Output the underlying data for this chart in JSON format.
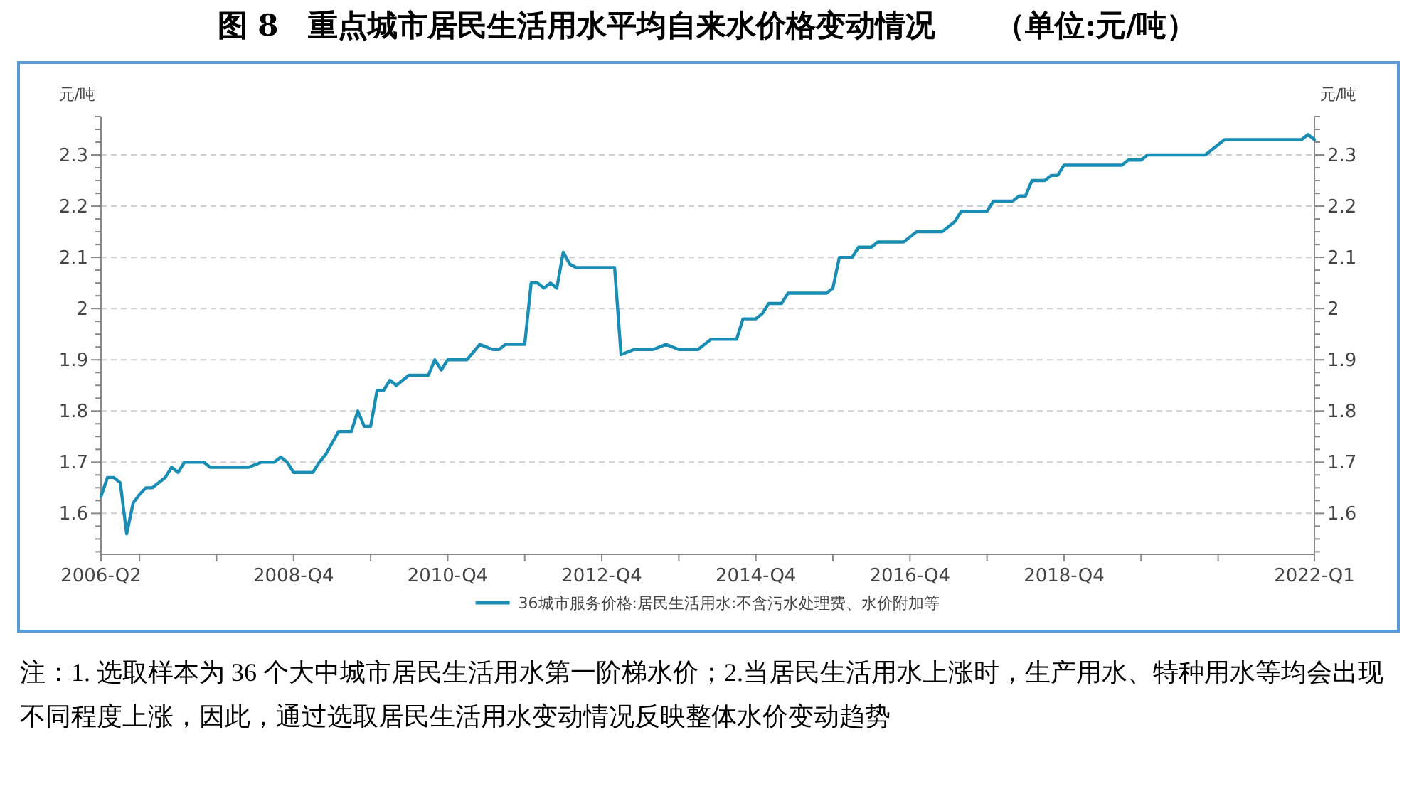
{
  "chart_data": {
    "type": "line",
    "title": "图 8　重点城市居民生活用水平均自来水价格变动情况　　（单位:元/吨）",
    "ylabel": "元/吨",
    "y2label": "元/吨",
    "grid": "y",
    "legend": "bottom",
    "marker": "none",
    "line_style": "solid",
    "annotations": [
      "注：1. 选取样本为 36 个大中城市居民生活用水第一阶梯水价；2.当居民生活用水上涨时，生产用水、特种用水等均会出现不同程度上涨，因此，通过选取居民生活用水变动情况反映整体水价变动趋势"
    ],
    "xlim": [
      "2006-04",
      "2022-01"
    ],
    "xticks": [
      {
        "value": "2006-04",
        "label": "2006-Q2"
      },
      {
        "value": "2006-10",
        "label": null
      },
      {
        "value": "2007-10",
        "label": null
      },
      {
        "value": "2008-10",
        "label": "2008-Q4"
      },
      {
        "value": "2009-10",
        "label": null
      },
      {
        "value": "2010-10",
        "label": "2010-Q4"
      },
      {
        "value": "2011-10",
        "label": null
      },
      {
        "value": "2012-10",
        "label": "2012-Q4"
      },
      {
        "value": "2013-10",
        "label": null
      },
      {
        "value": "2014-10",
        "label": "2014-Q4"
      },
      {
        "value": "2015-10",
        "label": null
      },
      {
        "value": "2016-10",
        "label": "2016-Q4"
      },
      {
        "value": "2017-10",
        "label": null
      },
      {
        "value": "2018-10",
        "label": "2018-Q4"
      },
      {
        "value": "2019-10",
        "label": null
      },
      {
        "value": "2020-10",
        "label": null
      },
      {
        "value": "2022-01",
        "label": "2022-Q1"
      }
    ],
    "ylim": [
      1.52,
      2.375
    ],
    "yticks": [
      {
        "value": 1.525,
        "label": null
      },
      {
        "value": 1.55,
        "label": null
      },
      {
        "value": 1.575,
        "label": null
      },
      1.6,
      {
        "value": 1.625,
        "label": null
      },
      {
        "value": 1.65,
        "label": null
      },
      {
        "value": 1.675,
        "label": null
      },
      1.7,
      {
        "value": 1.725,
        "label": null
      },
      {
        "value": 1.75,
        "label": null
      },
      {
        "value": 1.775,
        "label": null
      },
      1.8,
      {
        "value": 1.825,
        "label": null
      },
      {
        "value": 1.85,
        "label": null
      },
      {
        "value": 1.875,
        "label": null
      },
      1.9,
      {
        "value": 1.925,
        "label": null
      },
      {
        "value": 1.95,
        "label": null
      },
      {
        "value": 1.975,
        "label": null
      },
      2,
      {
        "value": 2.025,
        "label": null
      },
      {
        "value": 2.05,
        "label": null
      },
      {
        "value": 2.075,
        "label": null
      },
      2.1,
      {
        "value": 2.125,
        "label": null
      },
      {
        "value": 2.15,
        "label": null
      },
      {
        "value": 2.175,
        "label": null
      },
      2.2,
      {
        "value": 2.225,
        "label": null
      },
      {
        "value": 2.25,
        "label": null
      },
      {
        "value": 2.275,
        "label": null
      },
      2.3,
      {
        "value": 2.325,
        "label": null
      },
      {
        "value": 2.35,
        "label": null
      },
      {
        "value": 2.375,
        "label": null
      }
    ],
    "y2lim": [
      1.52,
      2.375
    ],
    "y2ticks": [
      {
        "value": 1.525,
        "label": null
      },
      {
        "value": 1.55,
        "label": null
      },
      {
        "value": 1.575,
        "label": null
      },
      1.6,
      {
        "value": 1.625,
        "label": null
      },
      {
        "value": 1.65,
        "label": null
      },
      {
        "value": 1.675,
        "label": null
      },
      1.7,
      {
        "value": 1.725,
        "label": null
      },
      {
        "value": 1.75,
        "label": null
      },
      {
        "value": 1.775,
        "label": null
      },
      1.8,
      {
        "value": 1.825,
        "label": null
      },
      {
        "value": 1.85,
        "label": null
      },
      {
        "value": 1.875,
        "label": null
      },
      1.9,
      {
        "value": 1.925,
        "label": null
      },
      {
        "value": 1.95,
        "label": null
      },
      {
        "value": 1.975,
        "label": null
      },
      2,
      {
        "value": 2.025,
        "label": null
      },
      {
        "value": 2.05,
        "label": null
      },
      {
        "value": 2.075,
        "label": null
      },
      2.1,
      {
        "value": 2.125,
        "label": null
      },
      {
        "value": 2.15,
        "label": null
      },
      {
        "value": 2.175,
        "label": null
      },
      2.2,
      {
        "value": 2.225,
        "label": null
      },
      {
        "value": 2.25,
        "label": null
      },
      {
        "value": 2.275,
        "label": null
      },
      2.3,
      {
        "value": 2.325,
        "label": null
      },
      {
        "value": 2.35,
        "label": null
      },
      {
        "value": 2.375,
        "label": null
      }
    ],
    "series": [
      {
        "name": "36城市服务价格:居民生活用水:不含污水处理费、水价附加等",
        "color": "#1a8db5",
        "x": [
          "2006-04",
          "2006-05",
          "2006-06",
          "2006-07",
          "2006-08",
          "2006-09",
          "2006-10",
          "2006-11",
          "2006-12",
          "2007-02",
          "2007-03",
          "2007-04",
          "2007-05",
          "2007-08",
          "2007-09",
          "2008-03",
          "2008-05",
          "2008-07",
          "2008-08",
          "2008-09",
          "2008-10",
          "2009-01",
          "2009-02",
          "2009-03",
          "2009-05",
          "2009-07",
          "2009-08",
          "2009-09",
          "2009-10",
          "2009-11",
          "2009-12",
          "2010-01",
          "2010-02",
          "2010-04",
          "2010-07",
          "2010-08",
          "2010-09",
          "2010-10",
          "2011-01",
          "2011-03",
          "2011-05",
          "2011-06",
          "2011-07",
          "2011-10",
          "2011-11",
          "2011-12",
          "2012-01",
          "2012-02",
          "2012-03",
          "2012-04",
          "2012-05",
          "2012-06",
          "2012-12",
          "2013-01",
          "2013-03",
          "2013-06",
          "2013-08",
          "2013-10",
          "2014-01",
          "2014-03",
          "2014-07",
          "2014-08",
          "2014-10",
          "2014-11",
          "2014-12",
          "2015-02",
          "2015-03",
          "2015-09",
          "2015-10",
          "2015-11",
          "2016-01",
          "2016-02",
          "2016-04",
          "2016-05",
          "2016-09",
          "2016-11",
          "2017-01",
          "2017-03",
          "2017-05",
          "2017-06",
          "2017-10",
          "2017-11",
          "2018-02",
          "2018-03",
          "2018-04",
          "2018-05",
          "2018-07",
          "2018-08",
          "2018-09",
          "2018-10",
          "2019-07",
          "2019-08",
          "2019-10",
          "2019-11",
          "2020-08",
          "2020-09",
          "2020-11",
          "2021-11",
          "2021-12",
          "2022-01"
        ],
        "values": [
          1.633,
          1.67,
          1.67,
          1.66,
          1.56,
          1.62,
          1.637,
          1.65,
          1.65,
          1.67,
          1.69,
          1.68,
          1.7,
          1.7,
          1.69,
          1.69,
          1.7,
          1.7,
          1.71,
          1.7,
          1.68,
          1.68,
          1.7,
          1.715,
          1.76,
          1.76,
          1.8,
          1.77,
          1.77,
          1.84,
          1.84,
          1.86,
          1.85,
          1.87,
          1.87,
          1.9,
          1.88,
          1.9,
          1.9,
          1.93,
          1.92,
          1.92,
          1.93,
          1.93,
          2.05,
          2.05,
          2.04,
          2.05,
          2.04,
          2.11,
          2.087,
          2.08,
          2.08,
          1.91,
          1.92,
          1.92,
          1.93,
          1.92,
          1.92,
          1.94,
          1.94,
          1.98,
          1.98,
          1.99,
          2.01,
          2.01,
          2.03,
          2.03,
          2.04,
          2.1,
          2.1,
          2.12,
          2.12,
          2.13,
          2.13,
          2.15,
          2.15,
          2.15,
          2.17,
          2.19,
          2.19,
          2.21,
          2.21,
          2.22,
          2.22,
          2.25,
          2.25,
          2.26,
          2.26,
          2.28,
          2.28,
          2.29,
          2.29,
          2.3,
          2.3,
          2.31,
          2.33,
          2.33,
          2.34,
          2.33
        ]
      }
    ]
  }
}
